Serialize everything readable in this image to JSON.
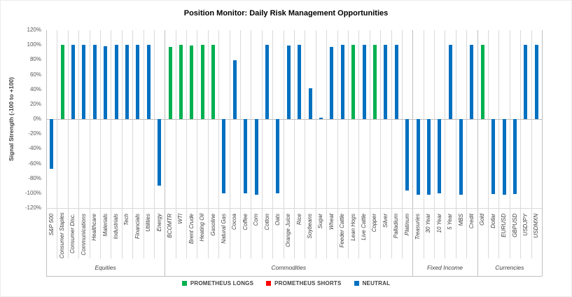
{
  "title": "Position Monitor: Daily Risk Management Opportunities",
  "y_axis": {
    "title": "Signal Strength (-100 to +100)",
    "ticks": [
      {
        "value": 120,
        "label": "120%"
      },
      {
        "value": 100,
        "label": "100%"
      },
      {
        "value": 80,
        "label": "80%"
      },
      {
        "value": 60,
        "label": "60%"
      },
      {
        "value": 40,
        "label": "40%"
      },
      {
        "value": 20,
        "label": "20%"
      },
      {
        "value": 0,
        "label": "0%"
      },
      {
        "value": -20,
        "label": "-20%"
      },
      {
        "value": -40,
        "label": "-40%"
      },
      {
        "value": -60,
        "label": "-60%"
      },
      {
        "value": -80,
        "label": "-80%"
      },
      {
        "value": -100,
        "label": "-100%"
      },
      {
        "value": -120,
        "label": "-120%"
      }
    ]
  },
  "legend": [
    {
      "label": "PROMETHEUS LONGS",
      "color": "#00B050"
    },
    {
      "label": "PROMETHEUS SHORTS",
      "color": "#FF0000"
    },
    {
      "label": "NEUTRAL",
      "color": "#0070C0"
    }
  ],
  "chart_data": {
    "type": "bar",
    "title": "Position Monitor: Daily Risk Management Opportunities",
    "xlabel": "",
    "ylabel": "Signal Strength (-100 to +100)",
    "ylim": [
      -120,
      120
    ],
    "ytick_step": 20,
    "grid": "vertical-category-gridlines",
    "legend_position": "bottom",
    "colors": {
      "long": "#00B050",
      "short": "#FF0000",
      "neutral": "#0070C0"
    },
    "groups": [
      {
        "name": "Equities",
        "items": [
          {
            "label": "S&P 500",
            "value": -67,
            "signal": "neutral"
          },
          {
            "label": "Consumer Staples",
            "value": 100,
            "signal": "long"
          },
          {
            "label": "Consumer Disc.",
            "value": 100,
            "signal": "neutral"
          },
          {
            "label": "Communications",
            "value": 100,
            "signal": "neutral"
          },
          {
            "label": "Healthcare",
            "value": 100,
            "signal": "neutral"
          },
          {
            "label": "Materials",
            "value": 98,
            "signal": "neutral"
          },
          {
            "label": "Industrials",
            "value": 100,
            "signal": "neutral"
          },
          {
            "label": "Tech",
            "value": 100,
            "signal": "neutral"
          },
          {
            "label": "Financials",
            "value": 100,
            "signal": "neutral"
          },
          {
            "label": "Utilities",
            "value": 100,
            "signal": "neutral"
          },
          {
            "label": "Energy",
            "value": -90,
            "signal": "neutral"
          }
        ]
      },
      {
        "name": "Commodities",
        "items": [
          {
            "label": "BCOMTR",
            "value": 97,
            "signal": "long"
          },
          {
            "label": "WTI",
            "value": 100,
            "signal": "long"
          },
          {
            "label": "Brent Crude",
            "value": 99,
            "signal": "long"
          },
          {
            "label": "Heating Oil",
            "value": 100,
            "signal": "long"
          },
          {
            "label": "Gasoline",
            "value": 100,
            "signal": "long"
          },
          {
            "label": "Natural Gas",
            "value": -100,
            "signal": "neutral"
          },
          {
            "label": "Cocoa",
            "value": 79,
            "signal": "neutral"
          },
          {
            "label": "Coffee",
            "value": -100,
            "signal": "neutral"
          },
          {
            "label": "Corn",
            "value": -102,
            "signal": "neutral"
          },
          {
            "label": "Cotton",
            "value": 100,
            "signal": "neutral"
          },
          {
            "label": "Oats",
            "value": -100,
            "signal": "neutral"
          },
          {
            "label": "Orange Juice",
            "value": 99,
            "signal": "neutral"
          },
          {
            "label": "Rice",
            "value": 100,
            "signal": "neutral"
          },
          {
            "label": "Soybeans",
            "value": 42,
            "signal": "neutral"
          },
          {
            "label": "Sugar",
            "value": 2,
            "signal": "neutral"
          },
          {
            "label": "Wheat",
            "value": 97,
            "signal": "neutral"
          },
          {
            "label": "Feeder Cattle",
            "value": 100,
            "signal": "neutral"
          },
          {
            "label": "Lean Hogs",
            "value": 100,
            "signal": "long"
          },
          {
            "label": "Live Cattle",
            "value": 100,
            "signal": "neutral"
          },
          {
            "label": "Copper",
            "value": 100,
            "signal": "long"
          },
          {
            "label": "Silver",
            "value": 100,
            "signal": "neutral"
          },
          {
            "label": "Palladium",
            "value": 100,
            "signal": "neutral"
          },
          {
            "label": "Platinum",
            "value": -96,
            "signal": "neutral"
          }
        ]
      },
      {
        "name": "Fixed Income",
        "items": [
          {
            "label": "Treasuries",
            "value": -102,
            "signal": "neutral"
          },
          {
            "label": "30 Year",
            "value": -102,
            "signal": "neutral"
          },
          {
            "label": "10 Year",
            "value": -100,
            "signal": "neutral"
          },
          {
            "label": "5 Year",
            "value": 100,
            "signal": "neutral"
          },
          {
            "label": "MBS",
            "value": -102,
            "signal": "neutral"
          },
          {
            "label": "Credit",
            "value": 100,
            "signal": "neutral"
          }
        ]
      },
      {
        "name": "Currencies",
        "items": [
          {
            "label": "Gold",
            "value": 100,
            "signal": "long"
          },
          {
            "label": "Dollar",
            "value": -101,
            "signal": "neutral"
          },
          {
            "label": "EURUSD",
            "value": -102,
            "signal": "neutral"
          },
          {
            "label": "GBPUSD",
            "value": -101,
            "signal": "neutral"
          },
          {
            "label": "USDJPY",
            "value": 100,
            "signal": "neutral"
          },
          {
            "label": "USDMXN",
            "value": 100,
            "signal": "neutral"
          }
        ]
      }
    ]
  }
}
